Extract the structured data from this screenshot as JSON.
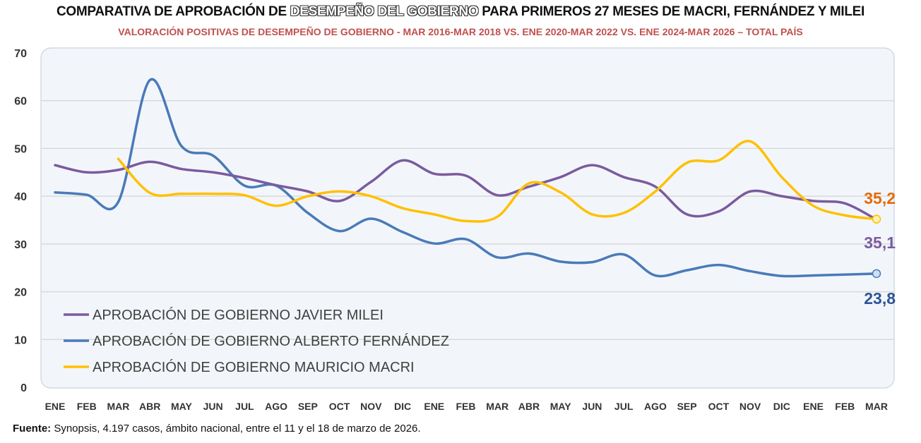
{
  "title": {
    "prefix": "COMPARATIVA DE APROBACIÓN DE ",
    "highlight": "DESEMPEÑO DEL GOBIERNO",
    "suffix": " PARA PRIMEROS 27 MESES DE MACRI, FERNÁNDEZ Y MILEI"
  },
  "subtitle": "VALORACIÓN POSITIVAS DE DESEMPEÑO DE GOBIERNO - MAR 2016-MAR 2018 VS. ENE 2020-MAR 2022 VS. ENE 2024-MAR 2026 – TOTAL PAÍS",
  "source": {
    "label": "Fuente:",
    "text": " Synopsis, 4.197 casos, ámbito nacional, entre el 11 y el 18 de marzo de 2026."
  },
  "chart_data": {
    "type": "line",
    "categories": [
      "ENE",
      "FEB",
      "MAR",
      "ABR",
      "MAY",
      "JUN",
      "JUL",
      "AGO",
      "SEP",
      "OCT",
      "NOV",
      "DIC",
      "ENE",
      "FEB",
      "MAR",
      "ABR",
      "MAY",
      "JUN",
      "JUL",
      "AGO",
      "SEP",
      "OCT",
      "NOV",
      "DIC",
      "ENE",
      "FEB",
      "MAR"
    ],
    "ylim": [
      0,
      70
    ],
    "yticks": [
      0,
      10,
      20,
      30,
      40,
      50,
      60,
      70
    ],
    "grid": true,
    "legend": "bottom-left",
    "series": [
      {
        "name": "APROBACIÓN DE GOBIERNO JAVIER MILEI",
        "color": "#7b5a9e",
        "end_label": "35,1",
        "values": [
          46.5,
          45,
          45.5,
          47.2,
          45.7,
          45,
          43.8,
          42.3,
          41,
          39,
          43,
          47.5,
          44.7,
          44.3,
          40.2,
          42,
          44,
          46.5,
          44,
          42,
          36.2,
          36.8,
          41,
          40,
          39,
          38.5,
          35.1
        ]
      },
      {
        "name": "APROBACIÓN DE GOBIERNO ALBERTO FERNÁNDEZ",
        "color": "#4a7ab8",
        "end_label": "23,8",
        "label_color": "#2f5597",
        "values": [
          40.8,
          40.3,
          38.8,
          64.3,
          50.5,
          48.5,
          42.2,
          42.2,
          36.5,
          32.7,
          35.3,
          32.5,
          30.1,
          31,
          27.2,
          28,
          26.3,
          26.2,
          27.8,
          23.4,
          24.5,
          25.6,
          24.3,
          23.3,
          23.4,
          23.6,
          23.8
        ]
      },
      {
        "name": "APROBACIÓN DE GOBIERNO MAURICIO MACRI",
        "color": "#ffc000",
        "end_label": "35,2",
        "label_color": "#e36c09",
        "values": [
          null,
          null,
          47.8,
          40.7,
          40.5,
          40.5,
          40.2,
          38,
          40,
          41,
          40,
          37.5,
          36.2,
          34.8,
          35.7,
          42.7,
          40.8,
          36.2,
          36.5,
          41,
          47,
          47.5,
          51.5,
          44,
          38,
          36,
          35.2
        ]
      }
    ]
  }
}
